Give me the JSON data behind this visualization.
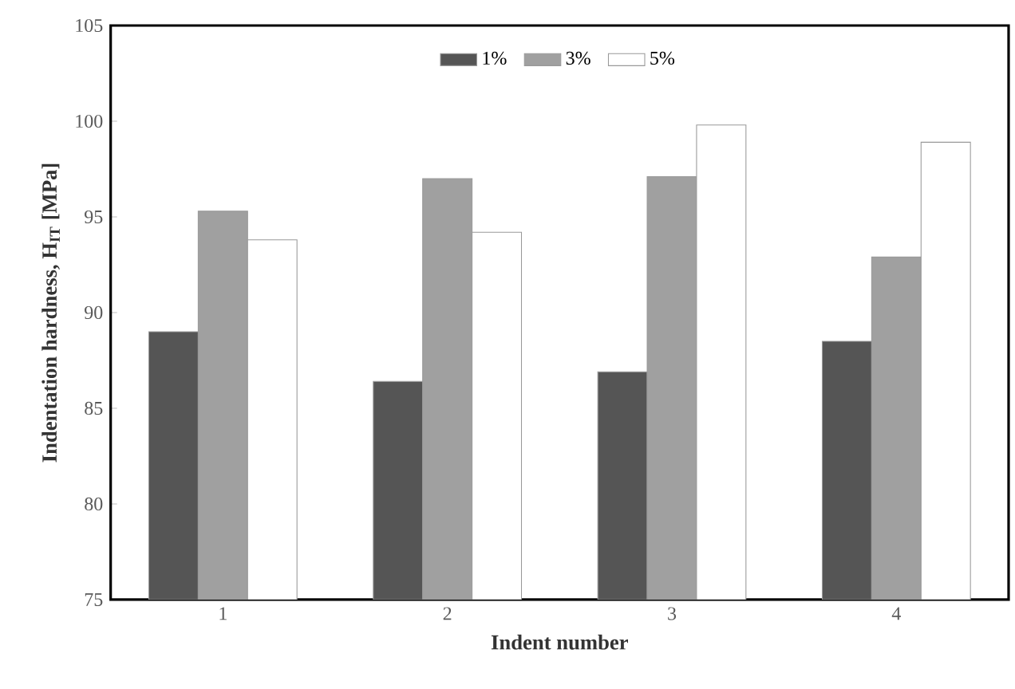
{
  "chart_data": {
    "type": "bar",
    "xlabel": "Indent number",
    "ylabel": "Indentation hardness, H$_{IT}$ [MPa]",
    "categories": [
      "1",
      "2",
      "3",
      "4"
    ],
    "series": [
      {
        "name": "1%",
        "color": "#555555",
        "values": [
          89.0,
          86.4,
          86.9,
          88.5
        ]
      },
      {
        "name": "3%",
        "color": "#a0a0a0",
        "values": [
          95.3,
          97.0,
          97.1,
          92.9
        ]
      },
      {
        "name": "5%",
        "color": "#ffffff",
        "values": [
          93.8,
          94.2,
          99.8,
          98.9
        ]
      }
    ],
    "ylim": [
      75,
      105
    ],
    "yticks": [
      75,
      80,
      85,
      90,
      95,
      100,
      105
    ],
    "legend": "top",
    "grid": false
  }
}
